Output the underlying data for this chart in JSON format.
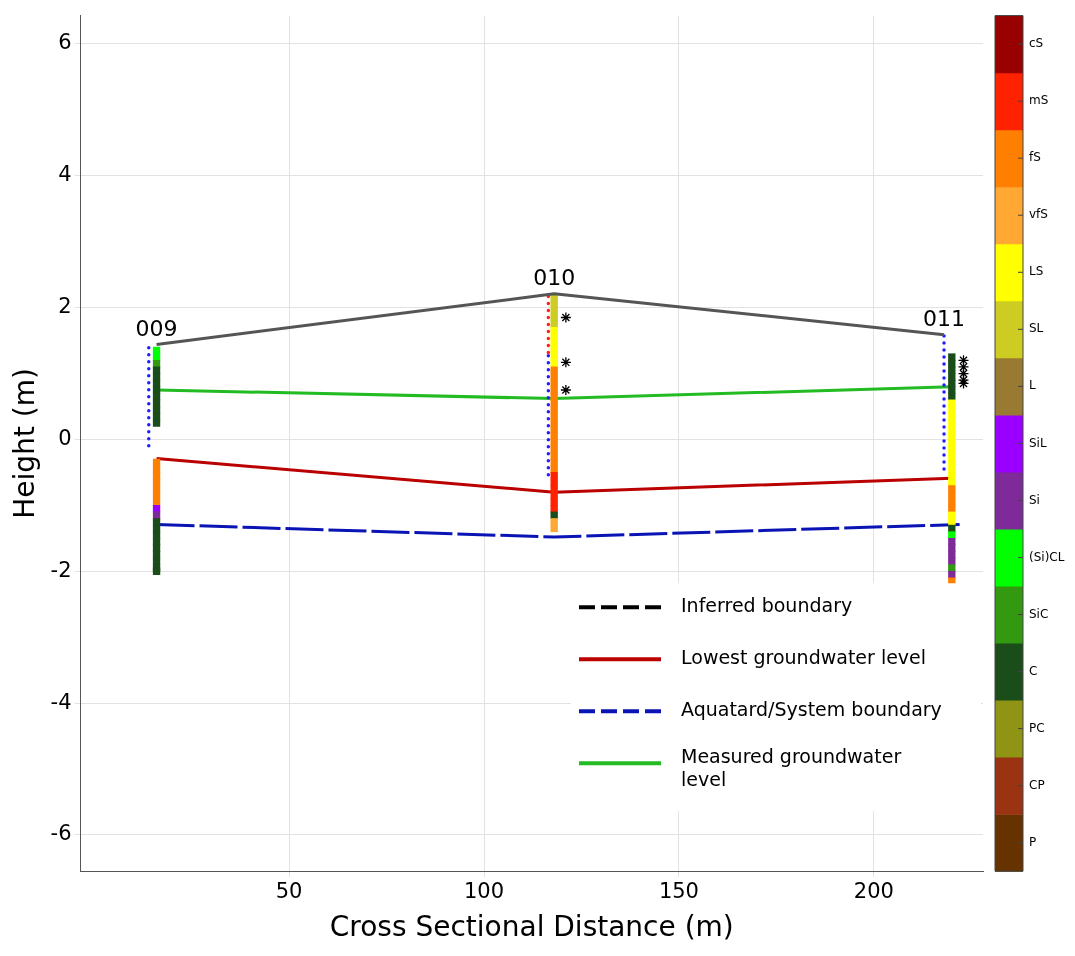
{
  "chart_data": {
    "type": "line",
    "xlabel": "Cross Sectional Distance (m)",
    "ylabel": "Height (m)",
    "xlim": [
      -3.5,
      228
    ],
    "xticks": [
      50,
      100,
      150,
      200
    ],
    "ylim": [
      -6.55,
      6.43
    ],
    "yticks": [
      -6,
      -4,
      -2,
      0,
      2,
      4,
      6
    ],
    "grid": true,
    "legend": "bottom right",
    "clim": [
      0,
      15
    ],
    "cticks": [
      {
        "value": 0.5,
        "label": "P"
      },
      {
        "value": 1.5,
        "label": "CP"
      },
      {
        "value": 2.5,
        "label": "PC"
      },
      {
        "value": 3.5,
        "label": "C"
      },
      {
        "value": 4.5,
        "label": "SiC"
      },
      {
        "value": 5.5,
        "label": "(Si)CL"
      },
      {
        "value": 6.5,
        "label": "Si"
      },
      {
        "value": 7.5,
        "label": "SiL"
      },
      {
        "value": 8.5,
        "label": "L"
      },
      {
        "value": 9.5,
        "label": "SL"
      },
      {
        "value": 10.5,
        "label": "LS"
      },
      {
        "value": 11.5,
        "label": "vfS"
      },
      {
        "value": 12.5,
        "label": "fS"
      },
      {
        "value": 13.5,
        "label": "mS"
      },
      {
        "value": 14.5,
        "label": "cS"
      }
    ],
    "colors": [
      "#663300",
      "#993311",
      "#8f9414",
      "#1a4d1a",
      "#339911",
      "#00ff00",
      "#7f2a99",
      "#9900ff",
      "#997a33",
      "#cccc22",
      "#ffff00",
      "#ffa833",
      "#ff7f00",
      "#ff2200",
      "#990000"
    ],
    "annotations": [
      {
        "text": "009",
        "x": 16,
        "y": 1.44
      },
      {
        "text": "010",
        "x": 118,
        "y": 2.21
      },
      {
        "text": "011",
        "x": 218,
        "y": 1.59
      }
    ],
    "series": [
      {
        "color": "#555555",
        "x": [
          16,
          118,
          218
        ],
        "values": [
          1.44,
          2.21,
          1.59
        ],
        "line_style": "solid",
        "marker": "none"
      },
      {
        "color": "#2020ff",
        "x": [
          14,
          14
        ],
        "values": [
          1.39,
          -0.14
        ],
        "line_style": "dotted",
        "marker": "none"
      },
      {
        "color": "#ff2020",
        "x": [
          116.5,
          116.5
        ],
        "values": [
          2.17,
          1.32
        ],
        "line_style": "dotted",
        "marker": "none"
      },
      {
        "color": "#2020ff",
        "x": [
          116.5,
          116.5
        ],
        "values": [
          1.27,
          -0.59
        ],
        "line_style": "dotted",
        "marker": "none"
      },
      {
        "color": "#2020ff",
        "x": [
          218,
          218
        ],
        "values": [
          1.57,
          -0.55
        ],
        "line_style": "dotted",
        "marker": "none"
      },
      {
        "type": "scatter",
        "marker": "square",
        "x": [
          16,
          16,
          16,
          16,
          16,
          16,
          16,
          16,
          16,
          16,
          16,
          16,
          16,
          16,
          16,
          16,
          16,
          16,
          16,
          16,
          16,
          16,
          16,
          16,
          16,
          16,
          16,
          16,
          16,
          16
        ],
        "values": [
          1.35,
          1.25,
          1.15,
          1.05,
          0.95,
          0.85,
          0.75,
          0.65,
          0.55,
          0.45,
          0.35,
          0.25,
          -0.35,
          -0.45,
          -0.55,
          -0.65,
          -0.75,
          -0.85,
          -0.95,
          -1.05,
          -1.15,
          -1.25,
          -1.35,
          -1.45,
          -1.55,
          -1.65,
          -1.75,
          -1.85,
          -1.95,
          -2.0
        ],
        "colors": [
          "#00ff00",
          "#00ff00",
          "#339911",
          "#1a4d1a",
          "#1a4d1a",
          "#1a4d1a",
          "#1a4d1a",
          "#1a4d1a",
          "#1a4d1a",
          "#1a4d1a",
          "#1a4d1a",
          "#1a4d1a",
          "#ff7f00",
          "#ff7f00",
          "#ff7f00",
          "#ff7f00",
          "#ff7f00",
          "#ff7f00",
          "#ff7f00",
          "#9900ff",
          "#7f2a99",
          "#1a4d1a",
          "#1a4d1a",
          "#1a4d1a",
          "#1a4d1a",
          "#1a4d1a",
          "#1a4d1a",
          "#1a4d1a",
          "#1a4d1a",
          "#1a4d1a"
        ]
      },
      {
        "type": "scatter",
        "marker": "square",
        "x": [
          118,
          118,
          118,
          118,
          118,
          118,
          118,
          118,
          118,
          118,
          118,
          118,
          118,
          118,
          118,
          118,
          118,
          118,
          118,
          118,
          118,
          118,
          118,
          118,
          118,
          118,
          118,
          118,
          118,
          118,
          118,
          118,
          118,
          118,
          118,
          118
        ],
        "values": [
          2.15,
          2.05,
          1.95,
          1.85,
          1.75,
          1.65,
          1.55,
          1.45,
          1.35,
          1.25,
          1.15,
          1.05,
          0.95,
          0.85,
          0.75,
          0.65,
          0.55,
          0.45,
          0.35,
          0.25,
          0.15,
          0.05,
          -0.05,
          -0.15,
          -0.25,
          -0.35,
          -0.45,
          -0.55,
          -0.65,
          -0.75,
          -0.85,
          -0.95,
          -1.05,
          -1.15,
          -1.25,
          -1.35
        ],
        "colors": [
          "#cccc22",
          "#cccc22",
          "#cccc22",
          "#cccc22",
          "#cccc22",
          "#ffff00",
          "#ffff00",
          "#ffff00",
          "#ffff00",
          "#ffff00",
          "#ffff00",
          "#ff7f00",
          "#ff7f00",
          "#ff7f00",
          "#ff7f00",
          "#ff7f00",
          "#ff7f00",
          "#ff7f00",
          "#ff7f00",
          "#ff7f00",
          "#ff7f00",
          "#ff7f00",
          "#ff7f00",
          "#ff7f00",
          "#ff7f00",
          "#ff7f00",
          "#ff7f00",
          "#ff2200",
          "#ff2200",
          "#ff2200",
          "#ff2200",
          "#ff2200",
          "#ff2200",
          "#1a4d1a",
          "#ffa833",
          "#ffa833"
        ]
      },
      {
        "type": "scatter",
        "marker": "square",
        "x": [
          220,
          220,
          220,
          220,
          220,
          220,
          220,
          220,
          220,
          220,
          220,
          220,
          220,
          220,
          220,
          220,
          220,
          220,
          220,
          220,
          220,
          220,
          220,
          220,
          220,
          220,
          220,
          220,
          220,
          220,
          220,
          220,
          220,
          220,
          220
        ],
        "values": [
          1.25,
          1.15,
          1.05,
          0.95,
          0.85,
          0.75,
          0.65,
          0.55,
          0.45,
          0.35,
          0.25,
          0.15,
          0.05,
          -0.05,
          -0.15,
          -0.25,
          -0.35,
          -0.45,
          -0.55,
          -0.65,
          -0.75,
          -0.85,
          -0.95,
          -1.05,
          -1.15,
          -1.25,
          -1.35,
          -1.45,
          -1.55,
          -1.65,
          -1.75,
          -1.85,
          -1.95,
          -2.05,
          -2.15
        ],
        "colors": [
          "#1a4d1a",
          "#1a4d1a",
          "#1a4d1a",
          "#1a4d1a",
          "#1a4d1a",
          "#1a4d1a",
          "#1a4d1a",
          "#ffff00",
          "#ffff00",
          "#ffff00",
          "#ffff00",
          "#ffff00",
          "#ffff00",
          "#ffff00",
          "#ffff00",
          "#ffff00",
          "#ffff00",
          "#ffff00",
          "#ffff00",
          "#ffff00",
          "#ff7f00",
          "#ff7f00",
          "#ff7f00",
          "#ff7f00",
          "#ffff00",
          "#ffff00",
          "#1a4d1a",
          "#00ff00",
          "#7f2a99",
          "#7f2a99",
          "#7f2a99",
          "#7f2a99",
          "#339911",
          "#7f2a99",
          "#ff7f00"
        ]
      },
      {
        "name": "Measured groundwater level",
        "color": "#22bb22",
        "x": [
          16,
          118,
          220
        ],
        "values": [
          0.75,
          0.62,
          0.8
        ],
        "line_style": "solid",
        "marker": "none"
      },
      {
        "name": "Aquatard/System boundary",
        "color": "#0a14b4",
        "x": [
          16,
          118,
          222
        ],
        "values": [
          -1.29,
          -1.48,
          -1.29
        ],
        "line_style": "dashed",
        "marker": "none"
      },
      {
        "name": "Lowest groundwater level",
        "color": "#bb0000",
        "x": [
          16,
          118,
          220
        ],
        "values": [
          -0.29,
          -0.8,
          -0.59
        ],
        "line_style": "solid",
        "marker": "none"
      },
      {
        "name": "Inferred boundary",
        "color": "#000000",
        "line_style": "dashed",
        "marker": "none"
      },
      {
        "type": "scatter",
        "marker": "cross",
        "color": "#000000",
        "x": [
          121,
          121,
          121,
          223,
          223,
          223,
          223,
          223
        ],
        "values": [
          1.85,
          1.17,
          0.75,
          1.2,
          1.1,
          1.0,
          0.9,
          0.85
        ]
      }
    ]
  }
}
